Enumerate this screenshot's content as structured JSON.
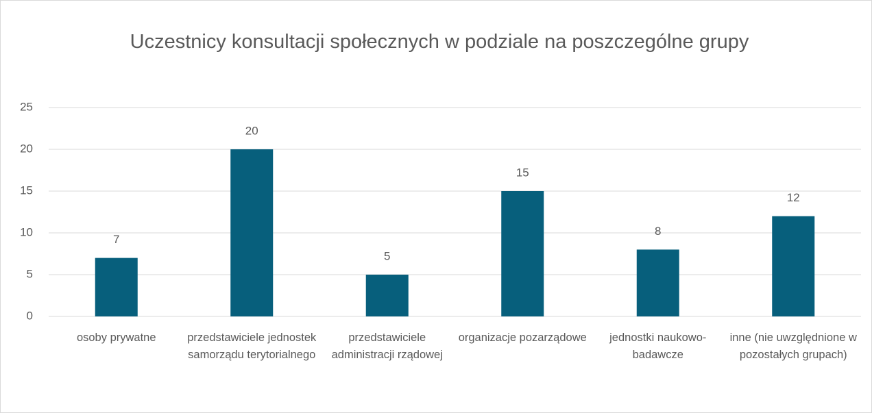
{
  "chart_data": {
    "type": "bar",
    "title": "Uczestnicy konsultacji społecznych w podziale na poszczególne grupy",
    "categories": [
      "osoby prywatne",
      "przedstawiciele jednostek samorządu terytorialnego",
      "przedstawiciele administracji rządowej",
      "organizacje pozarządowe",
      "jednostki naukowo-badawcze",
      "inne (nie uwzględnione w pozostałych grupach)"
    ],
    "values": [
      7,
      20,
      5,
      15,
      8,
      12
    ],
    "color": "#075f7c",
    "ylim": [
      0,
      25
    ],
    "yticks": [
      0,
      5,
      10,
      15,
      20,
      25
    ],
    "grid": true
  }
}
